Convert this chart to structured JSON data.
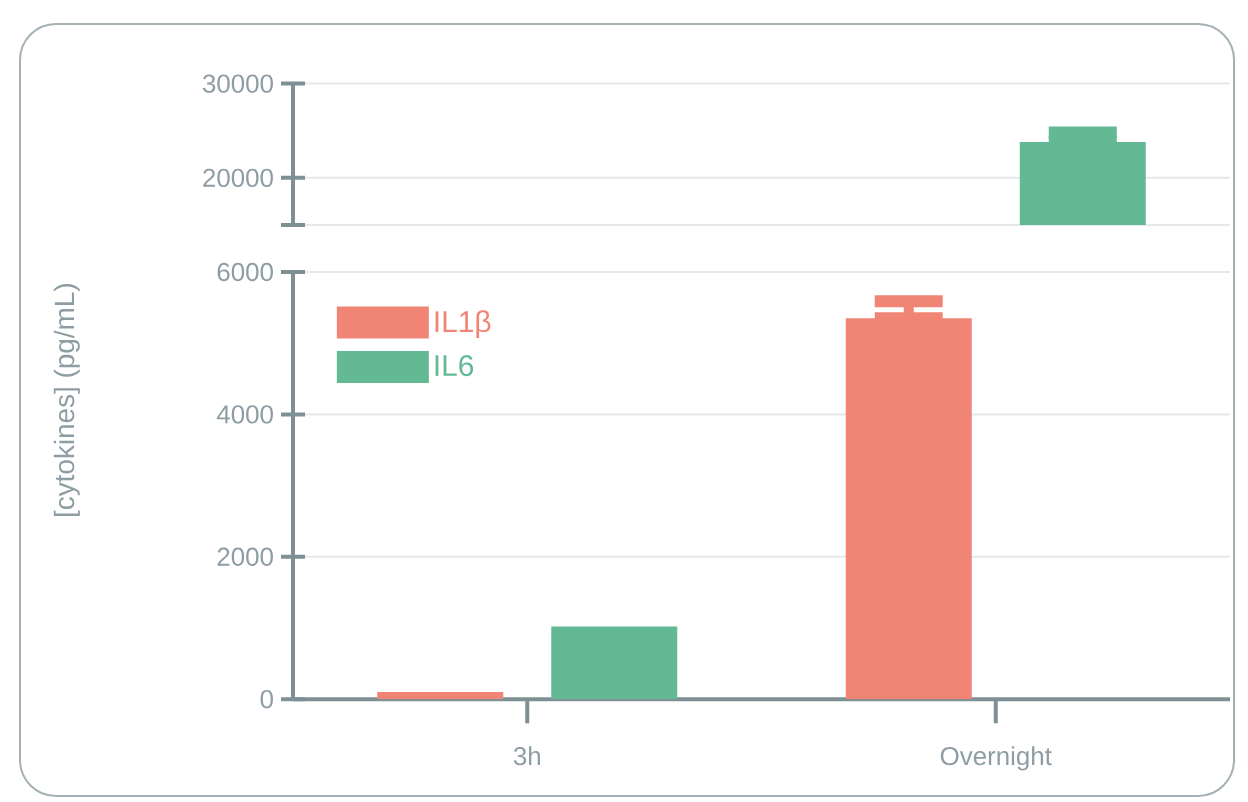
{
  "chart_data": [
    {
      "type": "bar",
      "categories": [
        null,
        null
      ],
      "tick_labels": "y",
      "grid": "y",
      "ylim": [
        15000,
        30000
      ],
      "yticks": [
        {
          "value": 15000,
          "label": null
        },
        20000,
        30000
      ],
      "series": [
        {
          "color": "#f08575",
          "values": [
            null,
            null
          ]
        },
        {
          "color": "#62b994",
          "values": [
            null,
            23800
          ],
          "errors": [
            null,
            [
              23800,
              24800
            ]
          ]
        }
      ]
    },
    {
      "type": "bar",
      "categories": [
        "3h",
        "Overnight"
      ],
      "ylabel": "[cytokines] (pg/mL)",
      "grid": "y",
      "legend": "top left",
      "ylim": [
        0,
        6000
      ],
      "yticks": [
        0,
        2000,
        4000,
        6000
      ],
      "series": [
        {
          "name": "IL1β",
          "color": "#f08575",
          "values": [
            100,
            5350
          ],
          "errors": [
            null,
            [
              5350,
              5590
            ]
          ]
        },
        {
          "name": "IL6",
          "color": "#62b994",
          "values": [
            1020,
            null
          ]
        }
      ]
    }
  ]
}
